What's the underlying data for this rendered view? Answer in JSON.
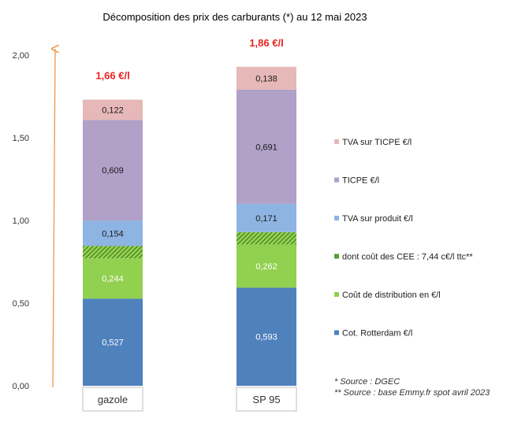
{
  "chart_data": {
    "type": "bar",
    "stacked": true,
    "title": "Décomposition des prix des carburants (*) au 12 mai 2023",
    "categories": [
      "gazole",
      "SP 95"
    ],
    "ylim": [
      0,
      2.0
    ],
    "y_ticks": [
      "0,00",
      "0,50",
      "1,00",
      "1,50",
      "2,00"
    ],
    "y_tick_values": [
      0,
      0.5,
      1.0,
      1.5,
      2.0
    ],
    "grid": false,
    "legend_position": "right",
    "totals": [
      "1,66 €/l",
      "1,86 €/l"
    ],
    "series": [
      {
        "name": "Cot. Rotterdam €/l",
        "values": [
          0.527,
          0.593
        ],
        "labels": [
          "0,527",
          "0,593"
        ],
        "color": "#4f81bd",
        "label_color": "#ffffff"
      },
      {
        "name": "Coût de distribution en €/l",
        "values": [
          0.244,
          0.262
        ],
        "labels": [
          "0,244",
          "0,262"
        ],
        "color": "#92d050",
        "label_color": "#ffffff"
      },
      {
        "name": "dont coût des CEE : 7,44 c€/l ttc**",
        "values": [
          0.0744,
          0.0744
        ],
        "labels": [
          "",
          ""
        ],
        "color": "#5a9e2f",
        "pattern": "hatch",
        "label_color": "#ffffff"
      },
      {
        "name": "TVA sur produit €/l",
        "values": [
          0.154,
          0.171
        ],
        "labels": [
          "0,154",
          "0,171"
        ],
        "color": "#8db4e2",
        "label_color": "#1a1a1a"
      },
      {
        "name": "TICPE €/l",
        "values": [
          0.609,
          0.691
        ],
        "labels": [
          "0,609",
          "0,691"
        ],
        "color": "#b1a0c7",
        "label_color": "#1a1a1a"
      },
      {
        "name": "TVA sur TICPE €/l",
        "values": [
          0.122,
          0.138
        ],
        "labels": [
          "0,122",
          "0,138"
        ],
        "color": "#e6b8b7",
        "label_color": "#1a1a1a"
      }
    ],
    "notes": [
      "* Source : DGEC",
      "** Source : base Emmy.fr spot avril 2023"
    ]
  }
}
